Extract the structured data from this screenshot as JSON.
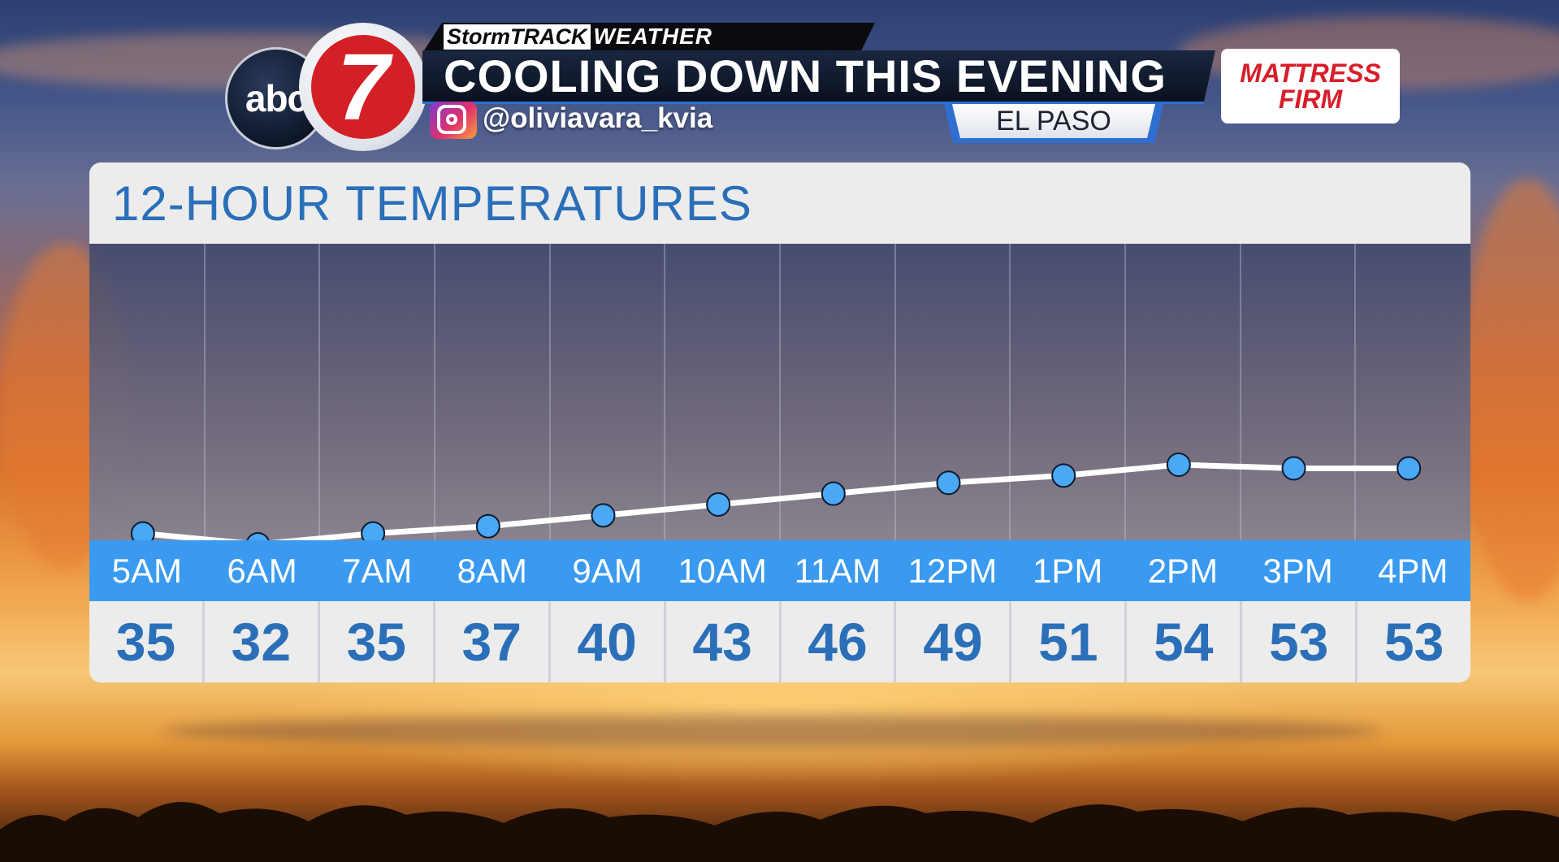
{
  "brand": {
    "storm": "StormTRACK",
    "weather": "WEATHER"
  },
  "logo": {
    "network": "abc",
    "channel": "7"
  },
  "headline": "COOLING DOWN THIS EVENING",
  "social": {
    "handle": "@oliviavara_kvia",
    "icon": "instagram-icon"
  },
  "location": "EL PASO",
  "sponsor": {
    "line1": "MATTRESS",
    "line2": "FIRM"
  },
  "colors": {
    "accent_blue": "#3a9af0",
    "title_blue": "#2a6fb8",
    "marker": "#4aa8f5",
    "sponsor_red": "#d81e2a"
  },
  "chart_data": {
    "type": "line",
    "title": "12-HOUR TEMPERATURES",
    "categories": [
      "5AM",
      "6AM",
      "7AM",
      "8AM",
      "9AM",
      "10AM",
      "11AM",
      "12PM",
      "1PM",
      "2PM",
      "3PM",
      "4PM"
    ],
    "values": [
      35,
      32,
      35,
      37,
      40,
      43,
      46,
      49,
      51,
      54,
      53,
      53
    ],
    "ylim": [
      32,
      54
    ],
    "grid": true
  }
}
